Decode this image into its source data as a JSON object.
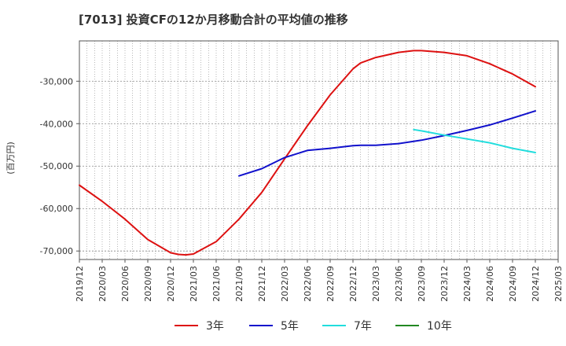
{
  "chart_data": {
    "type": "line",
    "title": "[7013]  投資CFの12か月移動合計の平均値の推移",
    "ylabel": "(百万円)",
    "xlabel": "",
    "ylim": [
      -72000,
      -20500
    ],
    "yticks": [
      -70000,
      -60000,
      -50000,
      -40000,
      -30000
    ],
    "ytick_labels": [
      "-70,000",
      "-60,000",
      "-50,000",
      "-40,000",
      "-30,000"
    ],
    "xticks": [
      "2019/12",
      "2020/03",
      "2020/06",
      "2020/09",
      "2020/12",
      "2021/03",
      "2021/06",
      "2021/09",
      "2021/12",
      "2022/03",
      "2022/06",
      "2022/09",
      "2022/12",
      "2023/03",
      "2023/06",
      "2023/09",
      "2023/12",
      "2024/03",
      "2024/06",
      "2024/09",
      "2024/12",
      "2025/03"
    ],
    "grid": true,
    "legend_position": "bottom",
    "series": [
      {
        "name": "3年",
        "color": "#dd1111",
        "x": [
          "2019/12",
          "2020/03",
          "2020/06",
          "2020/09",
          "2020/12",
          "2021/01",
          "2021/02",
          "2021/03",
          "2021/06",
          "2021/09",
          "2021/12",
          "2022/03",
          "2022/06",
          "2022/09",
          "2022/12",
          "2023/01",
          "2023/03",
          "2023/06",
          "2023/08",
          "2023/09",
          "2023/12",
          "2024/03",
          "2024/06",
          "2024/09",
          "2024/12"
        ],
        "values": [
          -54500,
          -58300,
          -62500,
          -67300,
          -70400,
          -70800,
          -70900,
          -70700,
          -67800,
          -62500,
          -56200,
          -48300,
          -40500,
          -33200,
          -27100,
          -25700,
          -24400,
          -23200,
          -22800,
          -22800,
          -23200,
          -24000,
          -25900,
          -28300,
          -31300
        ]
      },
      {
        "name": "5年",
        "color": "#1111cc",
        "x": [
          "2021/09",
          "2021/12",
          "2022/03",
          "2022/06",
          "2022/09",
          "2022/12",
          "2023/01",
          "2023/03",
          "2023/06",
          "2023/09",
          "2023/12",
          "2024/03",
          "2024/06",
          "2024/09",
          "2024/12"
        ],
        "values": [
          -52300,
          -50600,
          -48000,
          -46300,
          -45800,
          -45200,
          -45100,
          -45100,
          -44700,
          -43900,
          -42800,
          -41600,
          -40300,
          -38700,
          -37000
        ]
      },
      {
        "name": "7年",
        "color": "#22dddd",
        "x": [
          "2023/08",
          "2023/09",
          "2023/12",
          "2024/03",
          "2024/06",
          "2024/09",
          "2024/12"
        ],
        "values": [
          -41400,
          -41700,
          -42700,
          -43600,
          -44500,
          -45800,
          -46800
        ]
      },
      {
        "name": "10年",
        "color": "#228822",
        "x": [],
        "values": []
      }
    ]
  }
}
